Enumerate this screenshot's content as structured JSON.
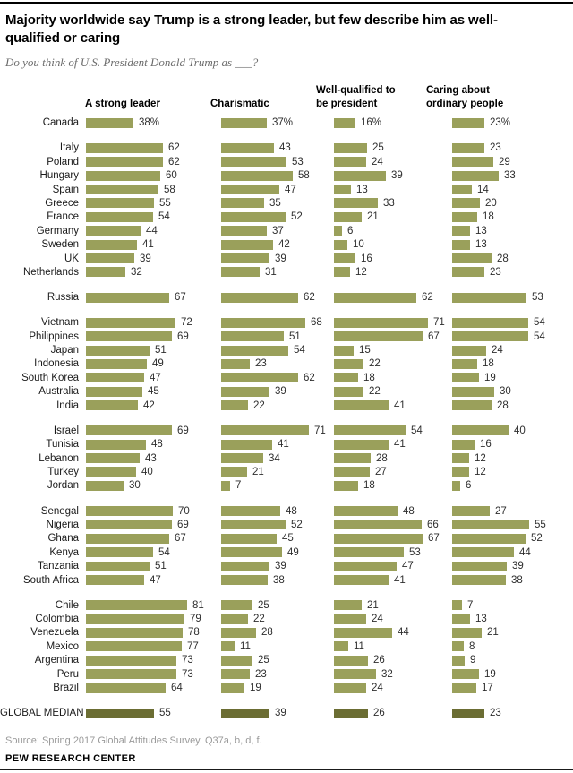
{
  "meta": {
    "title": "Majority worldwide say Trump is a strong leader, but few describe him as well-qualified or caring",
    "subtitle": "Do you think of U.S. President Donald Trump as ___?",
    "source": "Source: Spring 2017 Global Attitudes Survey. Q37a, b, d, f.",
    "branding": "PEW RESEARCH CENTER"
  },
  "chart_data": {
    "type": "bar",
    "orientation": "horizontal",
    "unit": "%",
    "xlim": [
      0,
      100
    ],
    "grid": false,
    "legend": false,
    "columns": [
      "A strong leader",
      "Charismatic",
      "Well-qualified to\nbe president",
      "Caring about\nordinary people"
    ],
    "colors": {
      "bar": "#9aa05b",
      "bar_emphasis": "#6b6d33"
    },
    "groups": [
      {
        "rows": [
          {
            "label": "Canada",
            "values": [
              38,
              37,
              16,
              23
            ],
            "percent_suffix": true
          }
        ]
      },
      {
        "rows": [
          {
            "label": "Italy",
            "values": [
              62,
              43,
              25,
              23
            ]
          },
          {
            "label": "Poland",
            "values": [
              62,
              53,
              24,
              29
            ]
          },
          {
            "label": "Hungary",
            "values": [
              60,
              58,
              39,
              33
            ]
          },
          {
            "label": "Spain",
            "values": [
              58,
              47,
              13,
              14
            ]
          },
          {
            "label": "Greece",
            "values": [
              55,
              35,
              33,
              20
            ]
          },
          {
            "label": "France",
            "values": [
              54,
              52,
              21,
              18
            ]
          },
          {
            "label": "Germany",
            "values": [
              44,
              37,
              6,
              13
            ]
          },
          {
            "label": "Sweden",
            "values": [
              41,
              42,
              10,
              13
            ]
          },
          {
            "label": "UK",
            "values": [
              39,
              39,
              16,
              28
            ]
          },
          {
            "label": "Netherlands",
            "values": [
              32,
              31,
              12,
              23
            ]
          }
        ]
      },
      {
        "rows": [
          {
            "label": "Russia",
            "values": [
              67,
              62,
              62,
              53
            ]
          }
        ]
      },
      {
        "rows": [
          {
            "label": "Vietnam",
            "values": [
              72,
              68,
              71,
              54
            ]
          },
          {
            "label": "Philippines",
            "values": [
              69,
              51,
              67,
              54
            ]
          },
          {
            "label": "Japan",
            "values": [
              51,
              54,
              15,
              24
            ]
          },
          {
            "label": "Indonesia",
            "values": [
              49,
              23,
              22,
              18
            ]
          },
          {
            "label": "South Korea",
            "values": [
              47,
              62,
              18,
              19
            ]
          },
          {
            "label": "Australia",
            "values": [
              45,
              39,
              22,
              30
            ]
          },
          {
            "label": "India",
            "values": [
              42,
              22,
              41,
              28
            ]
          }
        ]
      },
      {
        "rows": [
          {
            "label": "Israel",
            "values": [
              69,
              71,
              54,
              40
            ]
          },
          {
            "label": "Tunisia",
            "values": [
              48,
              41,
              41,
              16
            ]
          },
          {
            "label": "Lebanon",
            "values": [
              43,
              34,
              28,
              12
            ]
          },
          {
            "label": "Turkey",
            "values": [
              40,
              21,
              27,
              12
            ]
          },
          {
            "label": "Jordan",
            "values": [
              30,
              7,
              18,
              6
            ]
          }
        ]
      },
      {
        "rows": [
          {
            "label": "Senegal",
            "values": [
              70,
              48,
              48,
              27
            ]
          },
          {
            "label": "Nigeria",
            "values": [
              69,
              52,
              66,
              55
            ]
          },
          {
            "label": "Ghana",
            "values": [
              67,
              45,
              67,
              52
            ]
          },
          {
            "label": "Kenya",
            "values": [
              54,
              49,
              53,
              44
            ]
          },
          {
            "label": "Tanzania",
            "values": [
              51,
              39,
              47,
              39
            ]
          },
          {
            "label": "South Africa",
            "values": [
              47,
              38,
              41,
              38
            ]
          }
        ]
      },
      {
        "rows": [
          {
            "label": "Chile",
            "values": [
              81,
              25,
              21,
              7
            ]
          },
          {
            "label": "Colombia",
            "values": [
              79,
              22,
              24,
              13
            ]
          },
          {
            "label": "Venezuela",
            "values": [
              78,
              28,
              44,
              21
            ]
          },
          {
            "label": "Mexico",
            "values": [
              77,
              11,
              11,
              8
            ]
          },
          {
            "label": "Argentina",
            "values": [
              73,
              25,
              26,
              9
            ]
          },
          {
            "label": "Peru",
            "values": [
              73,
              23,
              32,
              19
            ]
          },
          {
            "label": "Brazil",
            "values": [
              64,
              19,
              24,
              17
            ]
          }
        ]
      },
      {
        "rows": [
          {
            "label": "GLOBAL MEDIAN",
            "values": [
              55,
              39,
              26,
              23
            ],
            "emphasis": true
          }
        ]
      }
    ]
  }
}
